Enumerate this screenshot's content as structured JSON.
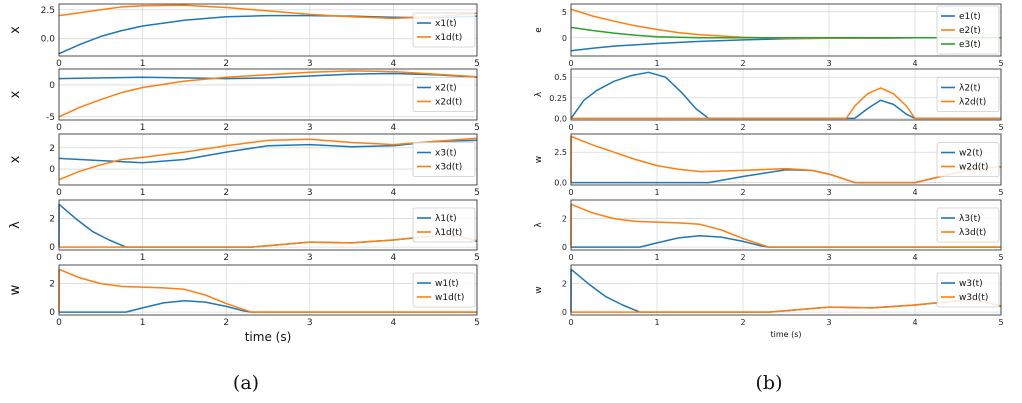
{
  "colors": {
    "blue": "#1f77b4",
    "orange": "#ff7f0e",
    "green": "#2ca02c"
  },
  "captions": {
    "left": "(a)",
    "right": "(b)"
  },
  "chart_data": [
    {
      "id": "a1",
      "type": "line",
      "ylabel": "x",
      "xlabel": "",
      "xlim": [
        0,
        5
      ],
      "ylim": [
        -1.5,
        3.0
      ],
      "xticks": [
        "0",
        "1",
        "2",
        "3",
        "4",
        "5"
      ],
      "yticks": [
        {
          "v": 0,
          "t": "0.0"
        },
        {
          "v": 2.5,
          "t": "2.5"
        }
      ],
      "legend_position": "right",
      "series": [
        {
          "name": "x1(t)",
          "color": "blue",
          "x": [
            0,
            0.25,
            0.5,
            0.75,
            1,
            1.5,
            2,
            2.5,
            3,
            3.5,
            4,
            4.5,
            5
          ],
          "y": [
            -1.3,
            -0.5,
            0.2,
            0.7,
            1.1,
            1.6,
            1.9,
            2.0,
            2.0,
            1.95,
            1.85,
            1.8,
            1.95
          ]
        },
        {
          "name": "x1d(t)",
          "color": "orange",
          "x": [
            0,
            0.25,
            0.5,
            0.75,
            1,
            1.5,
            2,
            2.5,
            3,
            3.5,
            4,
            4.5,
            5
          ],
          "y": [
            2.0,
            2.25,
            2.5,
            2.75,
            2.85,
            2.9,
            2.7,
            2.4,
            2.1,
            1.9,
            1.75,
            1.9,
            2.2
          ]
        }
      ]
    },
    {
      "id": "a2",
      "type": "line",
      "ylabel": "x",
      "xlabel": "",
      "xlim": [
        0,
        5
      ],
      "ylim": [
        -5.5,
        2.5
      ],
      "xticks": [
        "0",
        "1",
        "2",
        "3",
        "4",
        "5"
      ],
      "yticks": [
        {
          "v": -5,
          "t": "-5"
        },
        {
          "v": 0,
          "t": "0"
        }
      ],
      "legend_position": "right",
      "series": [
        {
          "name": "x2(t)",
          "color": "blue",
          "x": [
            0,
            0.5,
            1,
            1.5,
            2,
            2.5,
            3,
            3.5,
            4,
            4.5,
            5
          ],
          "y": [
            1.0,
            1.1,
            1.2,
            1.1,
            1.0,
            1.1,
            1.4,
            1.7,
            1.8,
            1.6,
            1.2
          ]
        },
        {
          "name": "x2d(t)",
          "color": "orange",
          "x": [
            0,
            0.25,
            0.5,
            0.75,
            1,
            1.5,
            2,
            2.5,
            3,
            3.5,
            4,
            4.5,
            5
          ],
          "y": [
            -5.0,
            -3.5,
            -2.3,
            -1.2,
            -0.4,
            0.6,
            1.2,
            1.6,
            2.0,
            2.2,
            2.1,
            1.7,
            1.3
          ]
        }
      ]
    },
    {
      "id": "a3",
      "type": "line",
      "ylabel": "x",
      "xlabel": "",
      "xlim": [
        0,
        5
      ],
      "ylim": [
        -1.5,
        3.3
      ],
      "xticks": [
        "0",
        "1",
        "2",
        "3",
        "4",
        "5"
      ],
      "yticks": [
        {
          "v": 0,
          "t": "0"
        },
        {
          "v": 2,
          "t": "2"
        }
      ],
      "legend_position": "right",
      "series": [
        {
          "name": "x3(t)",
          "color": "blue",
          "x": [
            0,
            0.5,
            1,
            1.5,
            2,
            2.5,
            3,
            3.5,
            4,
            4.5,
            5
          ],
          "y": [
            1.0,
            0.8,
            0.6,
            0.9,
            1.6,
            2.2,
            2.3,
            2.1,
            2.2,
            2.6,
            2.7
          ]
        },
        {
          "name": "x3d(t)",
          "color": "orange",
          "x": [
            0,
            0.25,
            0.5,
            0.75,
            1,
            1.5,
            2,
            2.5,
            3,
            3.5,
            4,
            4.5,
            5
          ],
          "y": [
            -1.0,
            -0.2,
            0.4,
            0.9,
            1.1,
            1.6,
            2.2,
            2.7,
            2.8,
            2.5,
            2.3,
            2.6,
            2.9
          ]
        }
      ]
    },
    {
      "id": "a4",
      "type": "line",
      "ylabel": "λ",
      "xlabel": "",
      "xlim": [
        0,
        5
      ],
      "ylim": [
        -0.2,
        3.3
      ],
      "xticks": [
        "0",
        "1",
        "2",
        "3",
        "4",
        "5"
      ],
      "yticks": [
        {
          "v": 0,
          "t": "0"
        },
        {
          "v": 2,
          "t": "2"
        }
      ],
      "legend_position": "right",
      "series": [
        {
          "name": "λ1(t)",
          "color": "blue",
          "x": [
            0,
            0.001,
            0.2,
            0.4,
            0.6,
            0.8,
            2.3,
            2.6,
            3.0,
            3.5,
            4.0,
            4.5,
            4.8,
            5
          ],
          "y": [
            0,
            3.0,
            2.0,
            1.1,
            0.5,
            0,
            0,
            0.15,
            0.35,
            0.3,
            0.5,
            0.8,
            0.75,
            0.4
          ]
        },
        {
          "name": "λ1d(t)",
          "color": "orange",
          "x": [
            0,
            2.3,
            2.6,
            3.0,
            3.5,
            4.0,
            4.5,
            4.8,
            5
          ],
          "y": [
            0,
            0,
            0.15,
            0.35,
            0.3,
            0.5,
            0.8,
            0.75,
            0.45
          ]
        }
      ]
    },
    {
      "id": "a5",
      "type": "line",
      "ylabel": "w",
      "xlabel": "time (s)",
      "xlim": [
        0,
        5
      ],
      "ylim": [
        -0.2,
        3.3
      ],
      "xticks": [
        "0",
        "1",
        "2",
        "3",
        "4",
        "5"
      ],
      "yticks": [
        {
          "v": 0,
          "t": "0"
        },
        {
          "v": 2,
          "t": "2"
        }
      ],
      "legend_position": "right",
      "series": [
        {
          "name": "w1(t)",
          "color": "blue",
          "x": [
            0,
            0.8,
            1.0,
            1.25,
            1.5,
            1.75,
            2.0,
            2.2,
            2.3,
            5
          ],
          "y": [
            0,
            0,
            0.3,
            0.65,
            0.8,
            0.7,
            0.4,
            0.1,
            0,
            0
          ]
        },
        {
          "name": "w1d(t)",
          "color": "orange",
          "x": [
            0,
            0.001,
            0.25,
            0.5,
            0.75,
            1.0,
            1.25,
            1.5,
            1.75,
            2.0,
            2.3,
            5
          ],
          "y": [
            0,
            3.0,
            2.4,
            2.0,
            1.8,
            1.75,
            1.7,
            1.6,
            1.2,
            0.6,
            0,
            0
          ]
        }
      ]
    },
    {
      "id": "b1",
      "type": "line",
      "ylabel": "e",
      "xlabel": "",
      "xlim": [
        0,
        5
      ],
      "ylim": [
        -3.5,
        6.5
      ],
      "xticks": [
        "0",
        "1",
        "2",
        "3",
        "4",
        "5"
      ],
      "yticks": [
        {
          "v": 0,
          "t": "0"
        },
        {
          "v": 5,
          "t": "5"
        }
      ],
      "legend_position": "right",
      "series": [
        {
          "name": "e1(t)",
          "color": "blue",
          "x": [
            0,
            0.25,
            0.5,
            1,
            1.5,
            2,
            2.5,
            3,
            4,
            5
          ],
          "y": [
            -2.5,
            -2.0,
            -1.6,
            -1.1,
            -0.7,
            -0.4,
            -0.2,
            -0.1,
            0,
            0
          ]
        },
        {
          "name": "e2(t)",
          "color": "orange",
          "x": [
            0,
            0.25,
            0.5,
            0.75,
            1,
            1.25,
            1.5,
            2,
            2.5,
            3,
            4,
            5
          ],
          "y": [
            5.5,
            4.2,
            3.2,
            2.3,
            1.6,
            1.0,
            0.6,
            0.1,
            -0.1,
            -0.1,
            0,
            0
          ]
        },
        {
          "name": "e3(t)",
          "color": "green",
          "x": [
            0,
            0.25,
            0.5,
            0.75,
            1,
            1.5,
            2,
            2.5,
            3,
            4,
            5
          ],
          "y": [
            2.0,
            1.4,
            0.9,
            0.5,
            0.2,
            0,
            0,
            0,
            0,
            0,
            0
          ]
        }
      ]
    },
    {
      "id": "b2",
      "type": "line",
      "ylabel": "λ",
      "xlabel": "",
      "xlim": [
        0,
        5
      ],
      "ylim": [
        -0.02,
        0.6
      ],
      "xticks": [
        "0",
        "1",
        "2",
        "3",
        "4",
        "5"
      ],
      "yticks": [
        {
          "v": 0,
          "t": "0.0"
        },
        {
          "v": 0.25,
          "t": "0.25"
        },
        {
          "v": 0.5,
          "t": "0.5"
        }
      ],
      "legend_position": "right",
      "series": [
        {
          "name": "λ2(t)",
          "color": "blue",
          "x": [
            0,
            0.15,
            0.3,
            0.5,
            0.7,
            0.9,
            1.1,
            1.3,
            1.45,
            1.6,
            3.2,
            3.3,
            3.45,
            3.6,
            3.75,
            3.9,
            4.0,
            5
          ],
          "y": [
            0,
            0.22,
            0.34,
            0.45,
            0.52,
            0.56,
            0.5,
            0.3,
            0.12,
            0,
            0,
            0,
            0.12,
            0.22,
            0.17,
            0.05,
            0,
            0
          ]
        },
        {
          "name": "λ2d(t)",
          "color": "orange",
          "x": [
            0,
            3.2,
            3.3,
            3.45,
            3.6,
            3.75,
            3.9,
            4.0,
            5
          ],
          "y": [
            0,
            0,
            0.15,
            0.3,
            0.37,
            0.3,
            0.15,
            0,
            0
          ]
        }
      ]
    },
    {
      "id": "b3",
      "type": "line",
      "ylabel": "w",
      "xlabel": "",
      "xlim": [
        0,
        5
      ],
      "ylim": [
        -0.2,
        4.0
      ],
      "xticks": [
        "0",
        "1",
        "2",
        "3",
        "4",
        "5"
      ],
      "yticks": [
        {
          "v": 0,
          "t": "0.0"
        },
        {
          "v": 2.5,
          "t": "2.5"
        }
      ],
      "legend_position": "right",
      "series": [
        {
          "name": "w2(t)",
          "color": "blue",
          "x": [
            0,
            1.6,
            2.0,
            2.5,
            2.8,
            3.0,
            3.3,
            4.0,
            4.3,
            4.6,
            5
          ],
          "y": [
            0,
            0,
            0.5,
            1.05,
            1.0,
            0.7,
            0,
            0,
            0.5,
            1.0,
            1.3
          ]
        },
        {
          "name": "w2d(t)",
          "color": "orange",
          "x": [
            0,
            0.001,
            0.25,
            0.5,
            0.75,
            1.0,
            1.25,
            1.5,
            2.0,
            2.5,
            2.8,
            3.0,
            3.3,
            4.0,
            4.3,
            4.6,
            5
          ],
          "y": [
            0,
            3.8,
            3.1,
            2.5,
            1.9,
            1.4,
            1.1,
            0.9,
            1.0,
            1.15,
            1.0,
            0.7,
            0,
            0,
            0.5,
            1.0,
            1.3
          ]
        }
      ]
    },
    {
      "id": "b4",
      "type": "line",
      "ylabel": "λ",
      "xlabel": "",
      "xlim": [
        0,
        5
      ],
      "ylim": [
        -0.2,
        3.3
      ],
      "xticks": [
        "0",
        "1",
        "2",
        "3",
        "4",
        "5"
      ],
      "yticks": [
        {
          "v": 0,
          "t": "0"
        },
        {
          "v": 2,
          "t": "2"
        }
      ],
      "legend_position": "right",
      "series": [
        {
          "name": "λ3(t)",
          "color": "blue",
          "x": [
            0,
            0.8,
            1.0,
            1.25,
            1.5,
            1.75,
            2.0,
            2.2,
            2.3,
            5
          ],
          "y": [
            0,
            0,
            0.3,
            0.65,
            0.8,
            0.7,
            0.4,
            0.1,
            0,
            0
          ]
        },
        {
          "name": "λ3d(t)",
          "color": "orange",
          "x": [
            0,
            0.001,
            0.25,
            0.5,
            0.75,
            1.0,
            1.25,
            1.5,
            1.75,
            2.0,
            2.3,
            5
          ],
          "y": [
            0,
            3.0,
            2.4,
            2.0,
            1.8,
            1.75,
            1.7,
            1.6,
            1.2,
            0.6,
            0,
            0
          ]
        }
      ]
    },
    {
      "id": "b5",
      "type": "line",
      "ylabel": "w",
      "xlabel": "time (s)",
      "xlim": [
        0,
        5
      ],
      "ylim": [
        -0.2,
        3.3
      ],
      "xticks": [
        "0",
        "1",
        "2",
        "3",
        "4",
        "5"
      ],
      "yticks": [
        {
          "v": 0,
          "t": "0"
        },
        {
          "v": 2,
          "t": "2"
        }
      ],
      "legend_position": "right",
      "series": [
        {
          "name": "w3(t)",
          "color": "blue",
          "x": [
            0,
            0.001,
            0.2,
            0.4,
            0.6,
            0.8,
            2.3,
            2.6,
            3.0,
            3.5,
            4.0,
            4.5,
            4.8,
            5
          ],
          "y": [
            0,
            3.0,
            2.0,
            1.1,
            0.5,
            0,
            0,
            0.15,
            0.35,
            0.3,
            0.5,
            0.8,
            0.75,
            0.4
          ]
        },
        {
          "name": "w3d(t)",
          "color": "orange",
          "x": [
            0,
            2.3,
            2.6,
            3.0,
            3.5,
            4.0,
            4.5,
            4.8,
            5
          ],
          "y": [
            0,
            0,
            0.15,
            0.35,
            0.3,
            0.5,
            0.8,
            0.75,
            0.45
          ]
        }
      ]
    }
  ]
}
